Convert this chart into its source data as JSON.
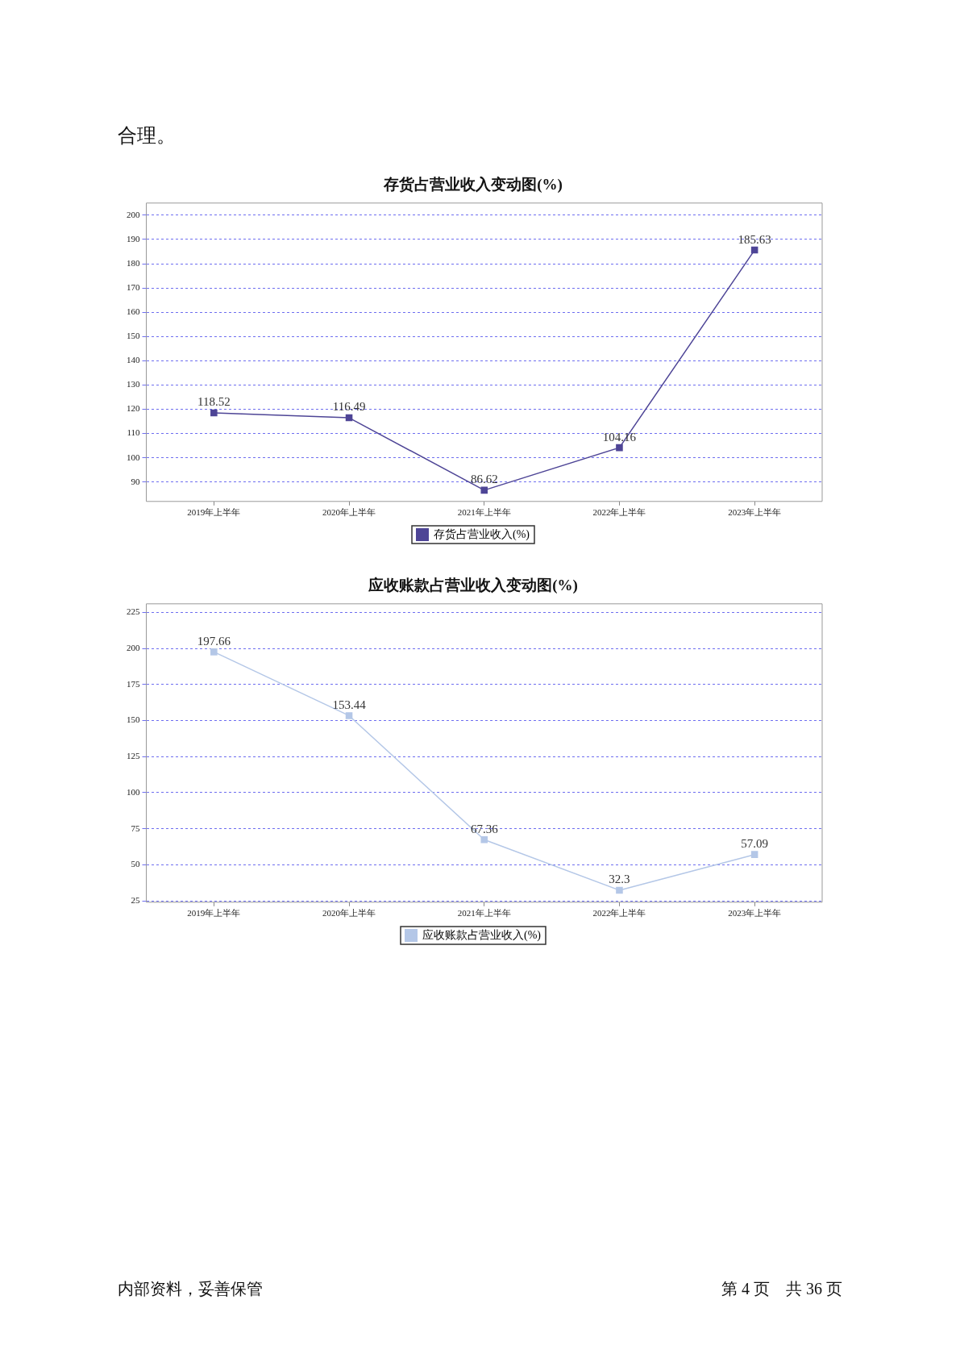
{
  "chart_data": [
    {
      "type": "line",
      "title": "存货占营业收入变动图(%)",
      "categories": [
        "2019年上半年",
        "2020年上半年",
        "2021年上半年",
        "2022年上半年",
        "2023年上半年"
      ],
      "series": [
        {
          "name": "存货占营业收入(%)",
          "color": "#4e4596",
          "values": [
            118.52,
            116.49,
            86.62,
            104.16,
            185.63
          ]
        }
      ],
      "ylim": [
        82,
        205
      ],
      "yticks": [
        90,
        100,
        110,
        120,
        130,
        140,
        150,
        160,
        170,
        180,
        190,
        200
      ],
      "grid": "y",
      "legend": "bottom",
      "marker": "square",
      "line_style": "solid",
      "data_labels": true,
      "annotations": [
        "合理。"
      ]
    },
    {
      "type": "line",
      "title": "应收账款占营业收入变动图(%)",
      "categories": [
        "2019年上半年",
        "2020年上半年",
        "2021年上半年",
        "2022年上半年",
        "2023年上半年"
      ],
      "series": [
        {
          "name": "应收账款占营业收入(%)",
          "color": "#b4c7e7",
          "values": [
            197.66,
            153.44,
            67.36,
            32.3,
            57.09
          ]
        }
      ],
      "ylim": [
        24,
        231
      ],
      "yticks": [
        25,
        50,
        75,
        100,
        125,
        150,
        175,
        200,
        225
      ],
      "grid": "y",
      "legend": "bottom",
      "marker": "square",
      "line_style": "solid",
      "data_labels": true,
      "annotations": [
        "内部资料，妥善保管",
        "第 4 页　共 36 页"
      ]
    }
  ]
}
